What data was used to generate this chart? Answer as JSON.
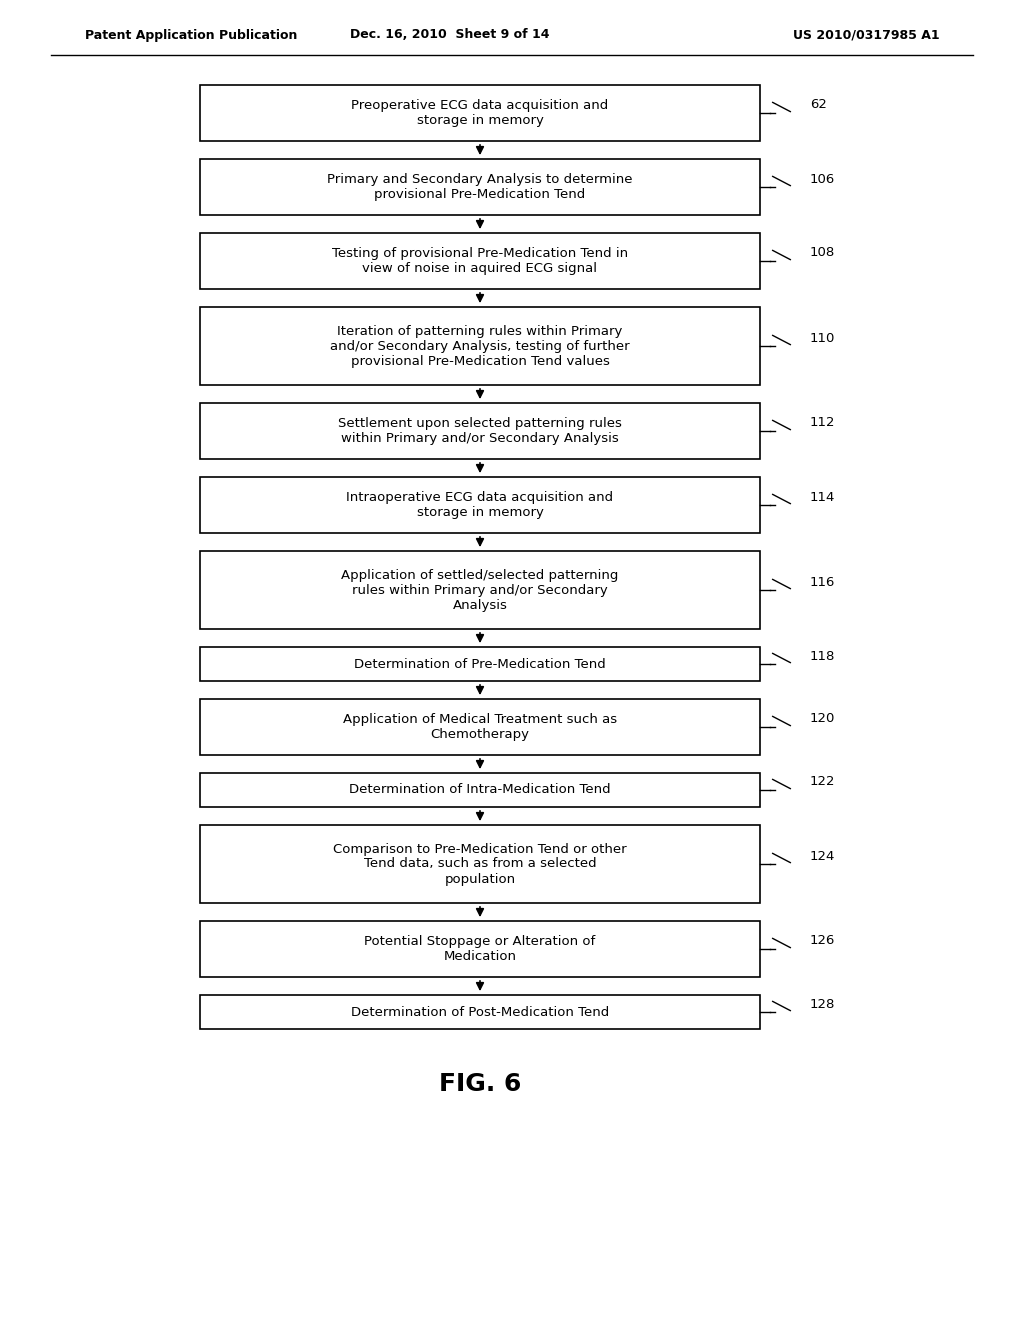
{
  "title_left": "Patent Application Publication",
  "title_center": "Dec. 16, 2010  Sheet 9 of 14",
  "title_right": "US 2010/0317985 A1",
  "fig_label": "FIG. 6",
  "background_color": "#ffffff",
  "box_facecolor": "#ffffff",
  "box_edgecolor": "#000000",
  "text_color": "#000000",
  "boxes": [
    {
      "label": "Preoperative ECG data acquisition and\nstorage in memory",
      "ref": "62"
    },
    {
      "label": "Primary and Secondary Analysis to determine\nprovisional Pre-Medication Tend",
      "ref": "106"
    },
    {
      "label": "Testing of provisional Pre-Medication Tend in\nview of noise in aquired ECG signal",
      "ref": "108"
    },
    {
      "label": "Iteration of patterning rules within Primary\nand/or Secondary Analysis, testing of further\nprovisional Pre-Medication Tend values",
      "ref": "110"
    },
    {
      "label": "Settlement upon selected patterning rules\nwithin Primary and/or Secondary Analysis",
      "ref": "112"
    },
    {
      "label": "Intraoperative ECG data acquisition and\nstorage in memory",
      "ref": "114"
    },
    {
      "label": "Application of settled/selected patterning\nrules within Primary and/or Secondary\nAnalysis",
      "ref": "116"
    },
    {
      "label": "Determination of Pre-Medication Tend",
      "ref": "118"
    },
    {
      "label": "Application of Medical Treatment such as\nChemotherapy",
      "ref": "120"
    },
    {
      "label": "Determination of Intra-Medication Tend",
      "ref": "122"
    },
    {
      "label": "Comparison to Pre-Medication Tend or other\nTend data, such as from a selected\npopulation",
      "ref": "124"
    },
    {
      "label": "Potential Stoppage or Alteration of\nMedication",
      "ref": "126"
    },
    {
      "label": "Determination of Post-Medication Tend",
      "ref": "128"
    }
  ]
}
